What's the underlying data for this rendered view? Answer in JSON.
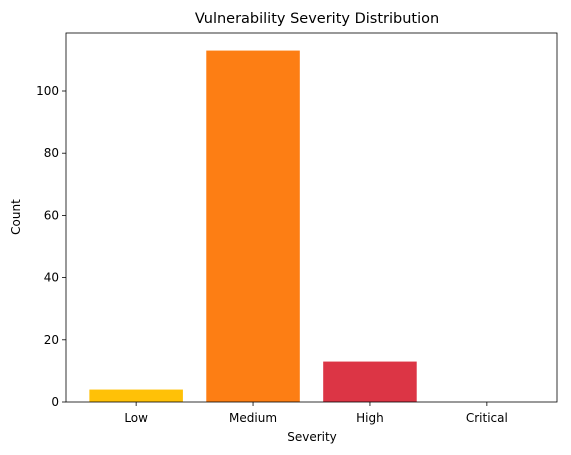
{
  "chart_data": {
    "type": "bar",
    "title": "Vulnerability Severity Distribution",
    "xlabel": "Severity",
    "ylabel": "Count",
    "categories": [
      "Low",
      "Medium",
      "High",
      "Critical"
    ],
    "values": [
      4,
      113,
      13,
      0
    ],
    "colors": [
      "#ffc107",
      "#fd7e14",
      "#dc3545",
      "#7b0000"
    ],
    "ylim": [
      0,
      118.65
    ],
    "yticks": [
      0,
      20,
      40,
      60,
      80,
      100
    ],
    "grid": false,
    "legend": "none"
  }
}
